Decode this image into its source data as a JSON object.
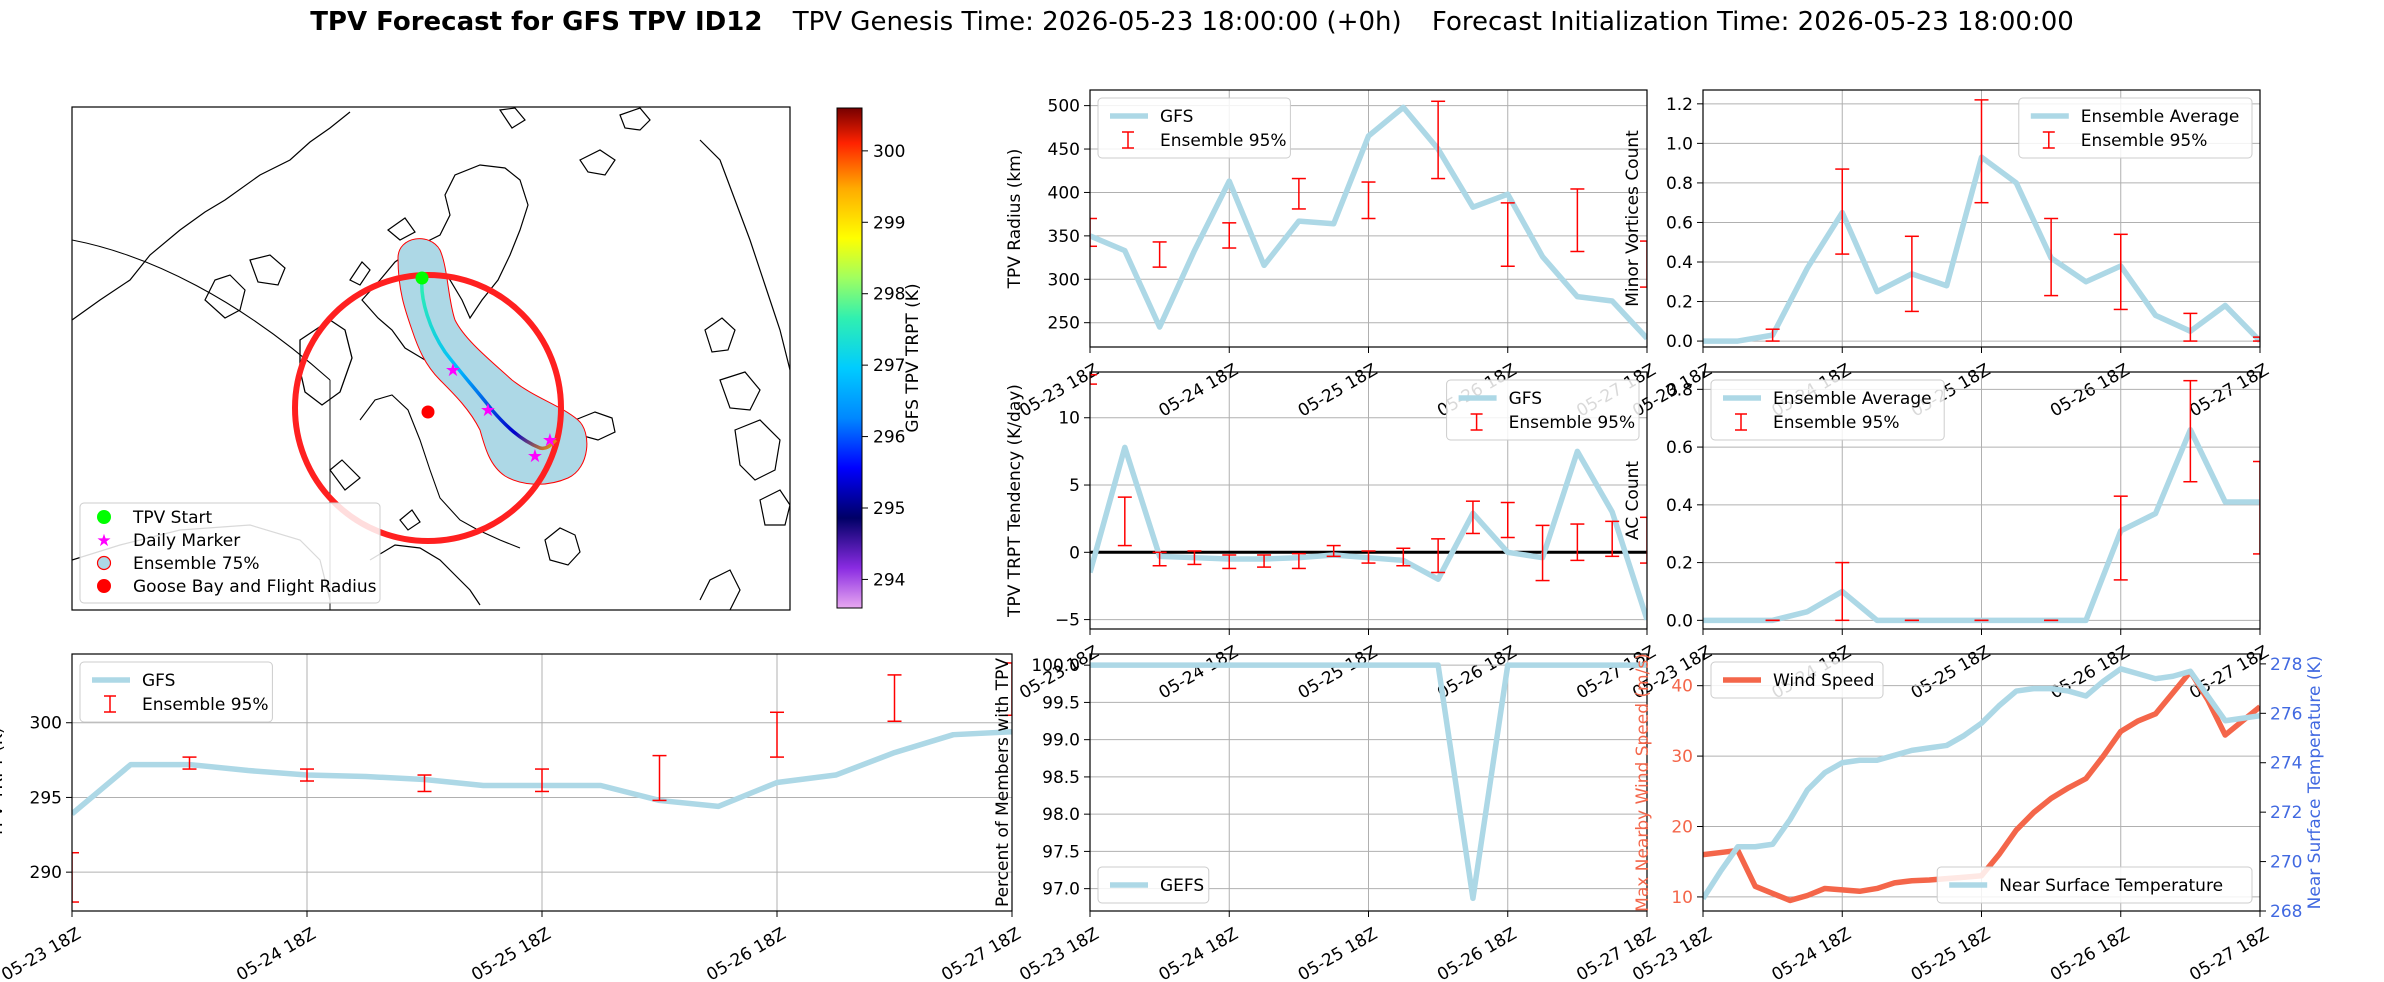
{
  "title": {
    "bold": "TPV Forecast for GFS TPV ID12",
    "genesis": "TPV Genesis Time: 2026-05-23 18:00:00 (+0h)",
    "init": "Forecast Initialization Time: 2026-05-23 18:00:00"
  },
  "colors": {
    "gfs_line": "#add8e6",
    "ensemble_err": "#ff0000",
    "wind": "#f4664a",
    "temperature_axis": "#4169e1",
    "radius_ring": "#ff0000",
    "ensemble75_fill": "#add8e6",
    "tpv_start": "#00ff00",
    "daily_marker": "#ff00ff",
    "goose_bay": "#ff0000"
  },
  "x_ticks": [
    "05-23 18Z",
    "05-24 18Z",
    "05-25 18Z",
    "05-26 18Z",
    "05-27 18Z"
  ],
  "map": {
    "legend": [
      "TPV Start",
      "Daily Marker",
      "Ensemble 75%",
      "Goose Bay and Flight Radius"
    ],
    "legend_icons": [
      "green-dot-icon",
      "magenta-star-icon",
      "ensemble-circle-icon",
      "red-dot-icon"
    ],
    "colorbar_label": "GFS TPV TRPT (K)",
    "colorbar_ticks": [
      "294",
      "295",
      "296",
      "297",
      "298",
      "299",
      "300"
    ],
    "colorbar_range": [
      293.6,
      300.6
    ]
  },
  "chart_data": [
    {
      "id": "radius",
      "type": "line",
      "ylabel": "TPV Radius (km)",
      "ylim": [
        222,
        518
      ],
      "yticks": [
        "250",
        "300",
        "350",
        "400",
        "450",
        "500"
      ],
      "ytick_values": [
        250,
        300,
        350,
        400,
        450,
        500
      ],
      "legend": {
        "position": "top-left",
        "entries": [
          "GFS",
          "Ensemble 95%"
        ]
      },
      "x": [
        0,
        1,
        2,
        3,
        4,
        5,
        6,
        7,
        8,
        9,
        10,
        11,
        12,
        13,
        14,
        15,
        16
      ],
      "series": [
        {
          "name": "GFS",
          "values": [
            350,
            333,
            245,
            333,
            413,
            316,
            367,
            364,
            465,
            498,
            450,
            383,
            398,
            326,
            280,
            275,
            232
          ]
        }
      ],
      "errorbars": [
        {
          "x": 0,
          "lo": 338,
          "hi": 370
        },
        {
          "x": 2,
          "lo": 314,
          "hi": 343
        },
        {
          "x": 4,
          "lo": 336,
          "hi": 365
        },
        {
          "x": 6,
          "lo": 381,
          "hi": 416
        },
        {
          "x": 8,
          "lo": 370,
          "hi": 412
        },
        {
          "x": 10,
          "lo": 416,
          "hi": 505
        },
        {
          "x": 12,
          "lo": 315,
          "hi": 388
        },
        {
          "x": 14,
          "lo": 332,
          "hi": 404
        },
        {
          "x": 16,
          "lo": 291,
          "hi": 344
        }
      ]
    },
    {
      "id": "minor",
      "type": "line",
      "ylabel": "Minor Vortices Count",
      "ylim": [
        -0.03,
        1.27
      ],
      "yticks": [
        "0.0",
        "0.2",
        "0.4",
        "0.6",
        "0.8",
        "1.0",
        "1.2"
      ],
      "ytick_values": [
        0,
        0.2,
        0.4,
        0.6,
        0.8,
        1.0,
        1.2
      ],
      "legend": {
        "position": "top-right",
        "entries": [
          "Ensemble Average",
          "Ensemble 95%"
        ]
      },
      "x": [
        0,
        1,
        2,
        3,
        4,
        5,
        6,
        7,
        8,
        9,
        10,
        11,
        12,
        13,
        14,
        15,
        16
      ],
      "series": [
        {
          "name": "Ensemble Average",
          "values": [
            0,
            0,
            0.03,
            0.37,
            0.65,
            0.25,
            0.34,
            0.28,
            0.93,
            0.8,
            0.42,
            0.3,
            0.38,
            0.13,
            0.05,
            0.18,
            0.0
          ]
        }
      ],
      "errorbars": [
        {
          "x": 2,
          "lo": 0.0,
          "hi": 0.06
        },
        {
          "x": 4,
          "lo": 0.44,
          "hi": 0.87
        },
        {
          "x": 6,
          "lo": 0.15,
          "hi": 0.53
        },
        {
          "x": 8,
          "lo": 0.7,
          "hi": 1.22
        },
        {
          "x": 10,
          "lo": 0.23,
          "hi": 0.62
        },
        {
          "x": 12,
          "lo": 0.16,
          "hi": 0.54
        },
        {
          "x": 14,
          "lo": 0.0,
          "hi": 0.14
        },
        {
          "x": 16,
          "lo": 0.0,
          "hi": 0.02
        }
      ]
    },
    {
      "id": "tendency",
      "type": "line",
      "ylabel": "TPV TRPT Tendency (K/day)",
      "ylim": [
        -5.7,
        13.4
      ],
      "yticks": [
        "−5",
        "0",
        "5",
        "10"
      ],
      "ytick_values": [
        -5,
        0,
        5,
        10
      ],
      "legend": {
        "position": "top-right",
        "entries": [
          "GFS",
          "Ensemble 95%"
        ]
      },
      "zero_line": true,
      "x": [
        0,
        1,
        2,
        3,
        4,
        5,
        6,
        7,
        8,
        9,
        10,
        11,
        12,
        13,
        14,
        15,
        16
      ],
      "series": [
        {
          "name": "GFS",
          "values": [
            -1.5,
            7.8,
            -0.3,
            -0.4,
            -0.5,
            -0.5,
            -0.4,
            -0.2,
            -0.4,
            -0.6,
            -2.0,
            2.9,
            0.0,
            -0.4,
            7.5,
            3.0,
            -5.0
          ]
        }
      ],
      "errorbars": [
        {
          "x": 0,
          "lo": 12.5,
          "hi": 13.2
        },
        {
          "x": 1,
          "lo": 0.5,
          "hi": 4.1
        },
        {
          "x": 2,
          "lo": -1.0,
          "hi": 0.0
        },
        {
          "x": 3,
          "lo": -0.9,
          "hi": 0.1
        },
        {
          "x": 4,
          "lo": -1.2,
          "hi": -0.2
        },
        {
          "x": 5,
          "lo": -1.1,
          "hi": -0.2
        },
        {
          "x": 6,
          "lo": -1.2,
          "hi": -0.1
        },
        {
          "x": 7,
          "lo": -0.3,
          "hi": 0.5
        },
        {
          "x": 8,
          "lo": -0.8,
          "hi": 0.1
        },
        {
          "x": 9,
          "lo": -1.0,
          "hi": 0.3
        },
        {
          "x": 10,
          "lo": -1.5,
          "hi": 1.0
        },
        {
          "x": 11,
          "lo": 1.4,
          "hi": 3.8
        },
        {
          "x": 12,
          "lo": 1.1,
          "hi": 3.7
        },
        {
          "x": 13,
          "lo": -2.1,
          "hi": 2.0
        },
        {
          "x": 14,
          "lo": -0.6,
          "hi": 2.1
        },
        {
          "x": 15,
          "lo": -0.3,
          "hi": 2.3
        },
        {
          "x": 16,
          "lo": -0.8,
          "hi": 2.6
        }
      ]
    },
    {
      "id": "ac",
      "type": "line",
      "ylabel": "AC Count",
      "ylim": [
        -0.03,
        0.86
      ],
      "yticks": [
        "0.0",
        "0.2",
        "0.4",
        "0.6",
        "0.8"
      ],
      "ytick_values": [
        0,
        0.2,
        0.4,
        0.6,
        0.8
      ],
      "legend": {
        "position": "top-left",
        "entries": [
          "Ensemble Average",
          "Ensemble 95%"
        ]
      },
      "x": [
        0,
        1,
        2,
        3,
        4,
        5,
        6,
        7,
        8,
        9,
        10,
        11,
        12,
        13,
        14,
        15,
        16
      ],
      "series": [
        {
          "name": "Ensemble Average",
          "values": [
            0,
            0,
            0,
            0.03,
            0.1,
            0,
            0,
            0,
            0,
            0,
            0,
            0,
            0.31,
            0.37,
            0.66,
            0.41,
            0.41
          ]
        }
      ],
      "errorbars": [
        {
          "x": 2,
          "lo": 0.0,
          "hi": 0.0
        },
        {
          "x": 4,
          "lo": 0.0,
          "hi": 0.2
        },
        {
          "x": 6,
          "lo": 0.0,
          "hi": 0.0
        },
        {
          "x": 8,
          "lo": 0.0,
          "hi": 0.0
        },
        {
          "x": 10,
          "lo": 0.0,
          "hi": 0.0
        },
        {
          "x": 12,
          "lo": 0.14,
          "hi": 0.43
        },
        {
          "x": 14,
          "lo": 0.48,
          "hi": 0.83
        },
        {
          "x": 16,
          "lo": 0.23,
          "hi": 0.55
        }
      ]
    },
    {
      "id": "trpt",
      "type": "line",
      "ylabel": "TPV TRPT (K)",
      "ylim": [
        287.4,
        304.6
      ],
      "yticks": [
        "290",
        "295",
        "300"
      ],
      "ytick_values": [
        290,
        295,
        300
      ],
      "legend": {
        "position": "top-left",
        "entries": [
          "GFS",
          "Ensemble 95%"
        ]
      },
      "x": [
        0,
        1,
        2,
        3,
        4,
        5,
        6,
        7,
        8,
        9,
        10,
        11,
        12,
        13,
        14,
        15,
        16
      ],
      "series": [
        {
          "name": "GFS",
          "values": [
            293.9,
            297.2,
            297.2,
            296.8,
            296.5,
            296.4,
            296.2,
            295.8,
            295.8,
            295.8,
            294.8,
            294.4,
            296.0,
            296.5,
            298.0,
            299.2,
            299.4
          ]
        }
      ],
      "errorbars": [
        {
          "x": 0,
          "lo": 288.0,
          "hi": 291.3
        },
        {
          "x": 2,
          "lo": 296.9,
          "hi": 297.7
        },
        {
          "x": 4,
          "lo": 296.1,
          "hi": 296.9
        },
        {
          "x": 6,
          "lo": 295.4,
          "hi": 296.5
        },
        {
          "x": 8,
          "lo": 295.4,
          "hi": 296.9
        },
        {
          "x": 10,
          "lo": 294.8,
          "hi": 297.8
        },
        {
          "x": 12,
          "lo": 297.7,
          "hi": 300.7
        },
        {
          "x": 14,
          "lo": 300.1,
          "hi": 303.2
        },
        {
          "x": 16,
          "lo": 300.5,
          "hi": 304.0
        }
      ]
    },
    {
      "id": "members",
      "type": "line",
      "ylabel": "Percent of Members with TPV",
      "ylim": [
        96.7,
        100.15
      ],
      "yticks": [
        "97.0",
        "97.5",
        "98.0",
        "98.5",
        "99.0",
        "99.5",
        "100.0"
      ],
      "ytick_values": [
        97.0,
        97.5,
        98.0,
        98.5,
        99.0,
        99.5,
        100.0
      ],
      "legend": {
        "position": "bottom-left",
        "entries": [
          "GEFS"
        ]
      },
      "x": [
        0,
        1,
        2,
        3,
        4,
        5,
        6,
        7,
        8,
        9,
        10,
        11,
        12,
        13,
        14,
        15,
        16
      ],
      "series": [
        {
          "name": "GEFS",
          "values": [
            100,
            100,
            100,
            100,
            100,
            100,
            100,
            100,
            100,
            100,
            100,
            96.87,
            100,
            100,
            100,
            100,
            100
          ]
        }
      ]
    },
    {
      "id": "wind_temp",
      "type": "line",
      "ylabel": "Max Nearby Wind Speed (m/s)",
      "ylabel_right": "Near Surface Temperature (K)",
      "ylim": [
        8,
        44.5
      ],
      "ylim_right": [
        268,
        278.4
      ],
      "yticks": [
        "10",
        "20",
        "30",
        "40"
      ],
      "ytick_values": [
        10,
        20,
        30,
        40
      ],
      "yticks_right": [
        "268",
        "270",
        "272",
        "274",
        "276",
        "278"
      ],
      "ytick_right_values": [
        268,
        270,
        272,
        274,
        276,
        278
      ],
      "legend": {
        "position": "top-left",
        "entries": [
          "Wind Speed"
        ]
      },
      "legend_right": {
        "position": "bottom-right",
        "entries": [
          "Near Surface Temperature"
        ]
      },
      "x": [
        0,
        1,
        2,
        3,
        4,
        5,
        6,
        7,
        8,
        9,
        10,
        11,
        12,
        13,
        14,
        15,
        16,
        17,
        18,
        19,
        20,
        21,
        22,
        23,
        24,
        25,
        26,
        27,
        28,
        29,
        30,
        31,
        32
      ],
      "series": [
        {
          "name": "Wind Speed",
          "axis": "left",
          "values": [
            16,
            16.3,
            16.6,
            11.5,
            10.5,
            9.5,
            10.2,
            11.2,
            11.0,
            10.8,
            11.2,
            12.0,
            12.3,
            12.4,
            12.6,
            12.8,
            13.0,
            16.0,
            19.5,
            22.0,
            24.0,
            25.5,
            26.8,
            30.0,
            33.5,
            35.0,
            36.0,
            39.0,
            42.0,
            38.0,
            33.0,
            35.0,
            37.0
          ]
        },
        {
          "name": "Near Surface Temperature",
          "axis": "right",
          "values": [
            268.5,
            269.6,
            270.6,
            270.6,
            270.7,
            271.7,
            272.9,
            273.6,
            274.0,
            274.1,
            274.1,
            274.3,
            274.5,
            274.6,
            274.7,
            275.1,
            275.6,
            276.3,
            276.9,
            277.0,
            277.0,
            276.9,
            276.7,
            277.3,
            277.8,
            277.6,
            277.4,
            277.5,
            277.7,
            276.7,
            275.7,
            275.8,
            275.9
          ]
        }
      ]
    }
  ]
}
